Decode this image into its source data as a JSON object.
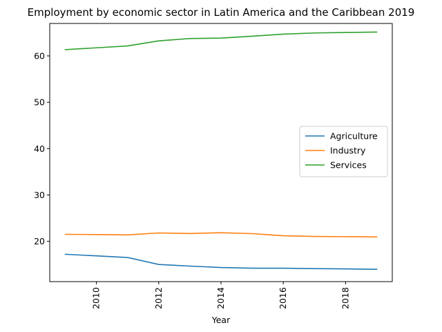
{
  "chart_data": {
    "type": "line",
    "title": "Employment by economic sector in Latin America and the Caribbean 2019",
    "xlabel": "Year",
    "ylabel": "",
    "x": [
      2009,
      2010,
      2011,
      2012,
      2013,
      2014,
      2015,
      2016,
      2017,
      2018,
      2019
    ],
    "xlim": [
      2008.5,
      2019.5
    ],
    "ylim": [
      11.3,
      67.0
    ],
    "x_ticks": [
      2010,
      2012,
      2014,
      2016,
      2018
    ],
    "y_ticks": [
      20,
      30,
      40,
      50,
      60
    ],
    "x_tick_rotation": "vertical",
    "grid": false,
    "legend_position": "center-right",
    "series": [
      {
        "name": "Agriculture",
        "color": "#1f77b4",
        "values": [
          17.2,
          16.85,
          16.5,
          15.0,
          14.65,
          14.35,
          14.2,
          14.2,
          14.1,
          14.05,
          13.95
        ]
      },
      {
        "name": "Industry",
        "color": "#ff7f0e",
        "values": [
          21.5,
          21.45,
          21.38,
          21.8,
          21.68,
          21.85,
          21.65,
          21.2,
          21.05,
          21.0,
          20.95
        ]
      },
      {
        "name": "Services",
        "color": "#2ca02c",
        "values": [
          61.35,
          61.75,
          62.15,
          63.25,
          63.75,
          63.85,
          64.25,
          64.7,
          64.95,
          65.05,
          65.15
        ]
      }
    ]
  }
}
